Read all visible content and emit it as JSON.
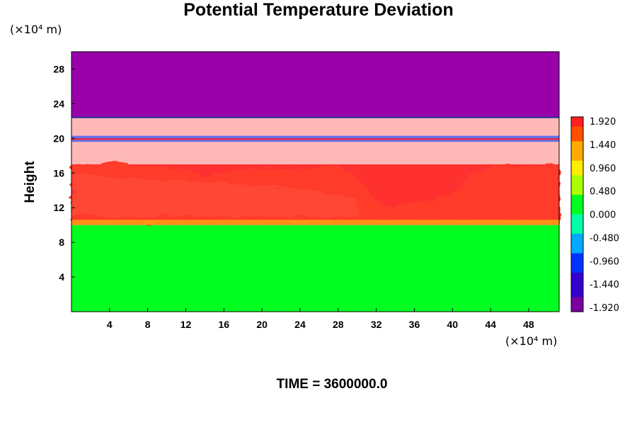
{
  "chart_data": {
    "type": "heatmap",
    "title": "Potential Temperature Deviation",
    "ylabel": "Height",
    "y_unit_label": "(×10⁴ m)",
    "x_unit_label": "(×10⁴ m)",
    "xlim": [
      0,
      51.2
    ],
    "ylim": [
      0,
      30
    ],
    "x_ticks": [
      4,
      8,
      12,
      16,
      20,
      24,
      28,
      32,
      36,
      40,
      44,
      48
    ],
    "y_ticks": [
      4,
      8,
      12,
      16,
      20,
      24,
      28
    ],
    "colorbar": {
      "min": -1.92,
      "max": 1.92,
      "labels": [
        "1.920",
        "1.440",
        "0.960",
        "0.480",
        "0.000",
        "-0.480",
        "-0.960",
        "-1.440",
        "-1.920"
      ]
    },
    "regions": [
      {
        "y_from": 0,
        "y_to": 10,
        "value": 0.0
      },
      {
        "y_from": 10,
        "y_to": 17,
        "value": 1.6
      },
      {
        "y_from": 17,
        "y_to": 22.4,
        "value": 1.92
      },
      {
        "y_from": 22.4,
        "y_to": 30,
        "value": -1.92
      }
    ],
    "footer": "TIME = 3600000.0"
  },
  "colors": {
    "purple": "#9900aa",
    "pink": "#ffb8b8",
    "red": "#ff3030",
    "green": "#00ff20"
  }
}
